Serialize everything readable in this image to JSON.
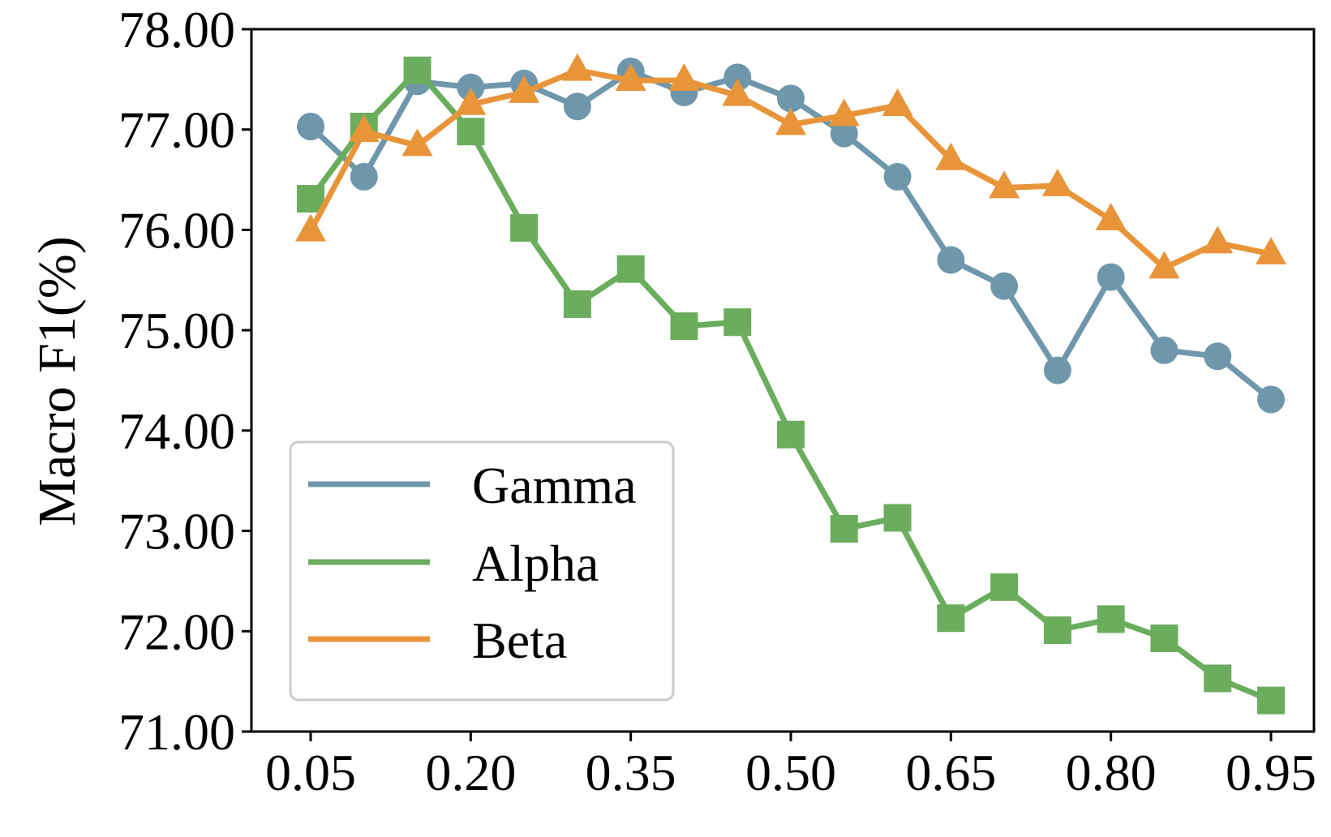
{
  "chart_data": {
    "type": "line",
    "title": "",
    "xlabel": "",
    "ylabel": "Macro F1(%)",
    "x_ticks": [
      "0.05",
      "0.20",
      "0.35",
      "0.50",
      "0.65",
      "0.80",
      "0.95"
    ],
    "y_ticks": [
      "71.00",
      "72.00",
      "73.00",
      "74.00",
      "75.00",
      "76.00",
      "77.00",
      "78.00"
    ],
    "xlim": [
      0.05,
      0.95
    ],
    "ylim": [
      71.0,
      78.0
    ],
    "grid": false,
    "legend_position": "lower-left",
    "x": [
      0.05,
      0.1,
      0.15,
      0.2,
      0.25,
      0.3,
      0.35,
      0.4,
      0.45,
      0.5,
      0.55,
      0.6,
      0.65,
      0.7,
      0.75,
      0.8,
      0.85,
      0.9,
      0.95
    ],
    "series": [
      {
        "name": "Gamma",
        "color": "#6e97ab",
        "marker": "circle",
        "values": [
          77.03,
          76.53,
          77.48,
          77.42,
          77.46,
          77.23,
          77.58,
          77.37,
          77.52,
          77.31,
          76.96,
          76.53,
          75.7,
          75.44,
          74.6,
          75.53,
          74.8,
          74.74,
          74.31
        ]
      },
      {
        "name": "Alpha",
        "color": "#6aad5d",
        "marker": "square",
        "values": [
          76.31,
          77.03,
          77.59,
          76.98,
          76.02,
          75.26,
          75.61,
          75.04,
          75.08,
          73.96,
          73.02,
          73.13,
          72.13,
          72.44,
          72.01,
          72.12,
          71.93,
          71.53,
          71.31
        ]
      },
      {
        "name": "Beta",
        "color": "#e8953a",
        "marker": "triangle",
        "values": [
          75.99,
          76.98,
          76.84,
          77.25,
          77.37,
          77.59,
          77.49,
          77.49,
          77.34,
          77.05,
          77.14,
          77.24,
          76.7,
          76.42,
          76.44,
          76.1,
          75.62,
          75.87,
          75.76
        ]
      }
    ]
  }
}
